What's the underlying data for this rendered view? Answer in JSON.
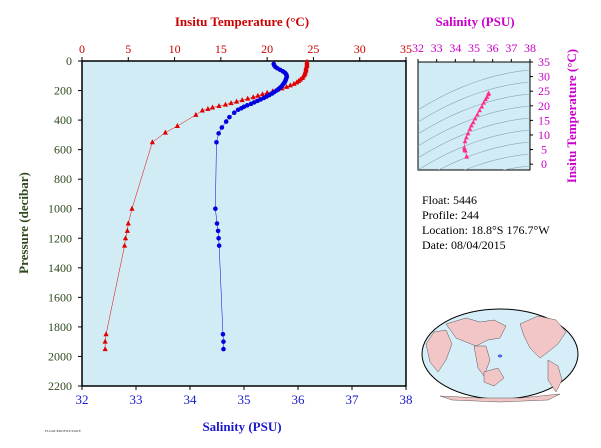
{
  "chart_data": [
    {
      "type": "scatter",
      "top_axis": {
        "label": "Insitu Temperature (°C)",
        "range": [
          0,
          35
        ],
        "ticks": [
          "0",
          "5",
          "10",
          "15",
          "20",
          "25",
          "30",
          "35"
        ],
        "color": "#d40000"
      },
      "bottom_axis": {
        "label": "Salinity (PSU)",
        "range": [
          32,
          38
        ],
        "ticks": [
          "32",
          "33",
          "34",
          "35",
          "36",
          "37",
          "38"
        ],
        "color": "#1a1acc"
      },
      "y_axis": {
        "label": "Pressure (decibar)",
        "range": [
          0,
          2200
        ],
        "inverted": true,
        "ticks": [
          "0",
          "200",
          "400",
          "600",
          "800",
          "1000",
          "1200",
          "1400",
          "1600",
          "1800",
          "2000",
          "2200"
        ],
        "color": "#2e4a1e"
      },
      "background": "#d2ecf5",
      "series": [
        {
          "axis": "top",
          "color": "#e00000",
          "marker": "triangle",
          "points": [
            [
              24.3,
              5
            ],
            [
              24.3,
              15
            ],
            [
              24.3,
              25
            ],
            [
              24.3,
              35
            ],
            [
              24.2,
              45
            ],
            [
              24.2,
              55
            ],
            [
              24.2,
              65
            ],
            [
              24.1,
              75
            ],
            [
              24.1,
              85
            ],
            [
              24.0,
              95
            ],
            [
              23.9,
              105
            ],
            [
              23.8,
              115
            ],
            [
              23.6,
              125
            ],
            [
              23.4,
              135
            ],
            [
              23.2,
              145
            ],
            [
              22.9,
              155
            ],
            [
              22.5,
              165
            ],
            [
              22.1,
              175
            ],
            [
              21.6,
              185
            ],
            [
              21.1,
              195
            ],
            [
              20.6,
              205
            ],
            [
              20.0,
              215
            ],
            [
              19.5,
              225
            ],
            [
              19.0,
              235
            ],
            [
              18.5,
              245
            ],
            [
              17.9,
              255
            ],
            [
              17.3,
              265
            ],
            [
              16.7,
              275
            ],
            [
              16.1,
              285
            ],
            [
              15.5,
              295
            ],
            [
              14.8,
              305
            ],
            [
              14.1,
              315
            ],
            [
              13.6,
              325
            ],
            [
              13.0,
              335
            ],
            [
              12.3,
              365
            ],
            [
              10.3,
              440
            ],
            [
              9.0,
              485
            ],
            [
              7.6,
              550
            ],
            [
              5.4,
              1000
            ],
            [
              5.0,
              1100
            ],
            [
              4.9,
              1150
            ],
            [
              4.7,
              1200
            ],
            [
              4.6,
              1250
            ],
            [
              2.6,
              1850
            ],
            [
              2.5,
              1900
            ],
            [
              2.5,
              1950
            ]
          ]
        },
        {
          "axis": "bottom",
          "color": "#0000e0",
          "marker": "circle",
          "points": [
            [
              35.55,
              20
            ],
            [
              35.56,
              30
            ],
            [
              35.58,
              40
            ],
            [
              35.62,
              50
            ],
            [
              35.67,
              60
            ],
            [
              35.72,
              70
            ],
            [
              35.76,
              80
            ],
            [
              35.78,
              90
            ],
            [
              35.79,
              100
            ],
            [
              35.79,
              110
            ],
            [
              35.78,
              120
            ],
            [
              35.77,
              130
            ],
            [
              35.76,
              140
            ],
            [
              35.74,
              150
            ],
            [
              35.72,
              160
            ],
            [
              35.7,
              170
            ],
            [
              35.67,
              180
            ],
            [
              35.64,
              190
            ],
            [
              35.6,
              200
            ],
            [
              35.56,
              210
            ],
            [
              35.52,
              220
            ],
            [
              35.47,
              230
            ],
            [
              35.42,
              240
            ],
            [
              35.37,
              250
            ],
            [
              35.31,
              260
            ],
            [
              35.25,
              270
            ],
            [
              35.19,
              280
            ],
            [
              35.13,
              290
            ],
            [
              35.06,
              300
            ],
            [
              35.0,
              310
            ],
            [
              34.95,
              320
            ],
            [
              34.89,
              330
            ],
            [
              34.82,
              350
            ],
            [
              34.73,
              380
            ],
            [
              34.67,
              410
            ],
            [
              34.59,
              450
            ],
            [
              34.53,
              490
            ],
            [
              34.49,
              550
            ],
            [
              34.47,
              1000
            ],
            [
              34.5,
              1100
            ],
            [
              34.52,
              1150
            ],
            [
              34.53,
              1200
            ],
            [
              34.54,
              1250
            ],
            [
              34.61,
              1850
            ],
            [
              34.62,
              1900
            ],
            [
              34.62,
              1950
            ]
          ]
        }
      ]
    },
    {
      "type": "scatter",
      "title": "Salinity (PSU)",
      "x_axis": {
        "range": [
          32,
          38
        ],
        "ticks": [
          "32",
          "33",
          "34",
          "35",
          "36",
          "37",
          "38"
        ],
        "color": "#cc00cc"
      },
      "y_axis": {
        "label": "Insitu Temperature (°C)",
        "range": [
          -2,
          35
        ],
        "ticks": [
          "0",
          "5",
          "10",
          "15",
          "20",
          "25",
          "30",
          "35"
        ],
        "color": "#cc00cc"
      },
      "background": "#d2ecf5",
      "density_contours": true,
      "series": [
        {
          "color": "#ff2d8a",
          "marker": "triangle",
          "points": [
            [
              35.78,
              24.3
            ],
            [
              35.79,
              24.2
            ],
            [
              35.76,
              23.9
            ],
            [
              35.7,
              23.0
            ],
            [
              35.62,
              22.2
            ],
            [
              35.52,
              21.0
            ],
            [
              35.42,
              19.7
            ],
            [
              35.3,
              18.4
            ],
            [
              35.18,
              17.0
            ],
            [
              35.06,
              15.6
            ],
            [
              34.96,
              14.3
            ],
            [
              34.86,
              13.2
            ],
            [
              34.78,
              12.0
            ],
            [
              34.68,
              10.5
            ],
            [
              34.59,
              9.1
            ],
            [
              34.52,
              7.8
            ],
            [
              34.48,
              5.6
            ],
            [
              34.5,
              5.0
            ],
            [
              34.52,
              4.8
            ],
            [
              34.54,
              4.6
            ],
            [
              34.6,
              2.6
            ],
            [
              34.62,
              2.5
            ]
          ]
        }
      ]
    }
  ],
  "info": {
    "float": "Float:  5446",
    "profile": "Profile:  244",
    "location": "Location:  18.8°S  176.7°W",
    "date": "Date:  08/04/2015"
  },
  "footer_note": "FLOAT/PROFILE/DATE"
}
